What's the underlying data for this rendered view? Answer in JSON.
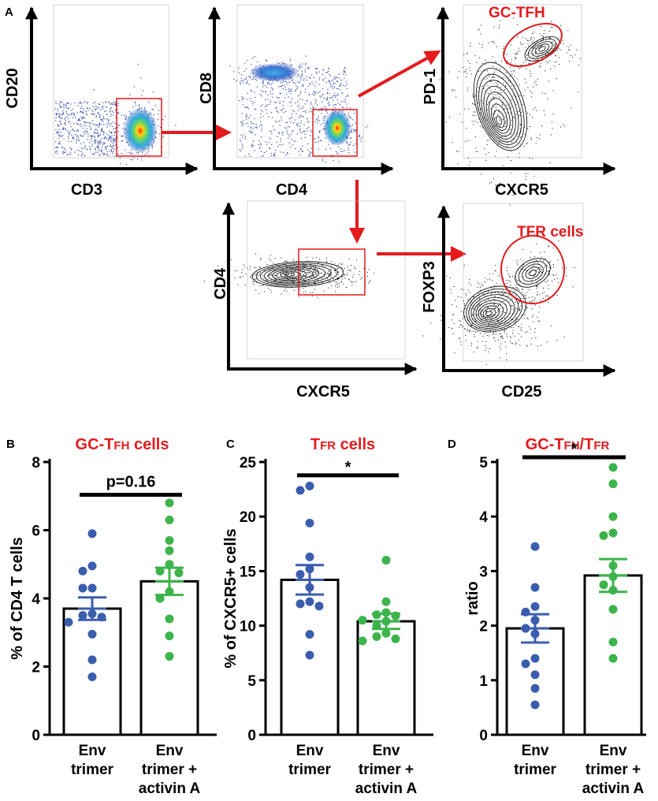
{
  "colors": {
    "red": "#e41a1c",
    "blue": "#3a5dad",
    "green": "#3cb44b",
    "black": "#000000"
  },
  "panel_a": {
    "letter": "A",
    "plots": [
      {
        "id": "p1",
        "xlabel": "CD3",
        "ylabel": "CD20",
        "style": "density",
        "gate": "rect",
        "gate_label": ""
      },
      {
        "id": "p2",
        "xlabel": "CD4",
        "ylabel": "CD8",
        "style": "density",
        "gate": "rect",
        "gate_label": ""
      },
      {
        "id": "p3",
        "xlabel": "CXCR5",
        "ylabel": "PD-1",
        "style": "contour",
        "gate": "ellipse",
        "gate_label": "GC-TFH"
      },
      {
        "id": "p4",
        "xlabel": "CXCR5",
        "ylabel": "CD4",
        "style": "contour",
        "gate": "rect",
        "gate_label": ""
      },
      {
        "id": "p5",
        "xlabel": "CD25",
        "ylabel": "FOXP3",
        "style": "contour",
        "gate": "ellipse",
        "gate_label": "TFR cells"
      }
    ]
  },
  "chart_data": [
    {
      "type": "bar",
      "panel": "B",
      "title": "GC-TFH cells",
      "title_main": "GC-T",
      "title_sub": "FH",
      "title_rest": " cells",
      "xlabel": "",
      "ylabel": "% of CD4  T cells",
      "ylim": [
        0,
        8
      ],
      "yticks": [
        "0",
        "2",
        "4",
        "6",
        "8"
      ],
      "categories": [
        {
          "line1": "Env",
          "line2": "trimer",
          "line3": ""
        },
        {
          "line1": "Env",
          "line2": "trimer +",
          "line3": "activin A"
        }
      ],
      "means": [
        3.7,
        4.5
      ],
      "sem": [
        0.33,
        0.4
      ],
      "points": [
        [
          5.9,
          4.95,
          4.8,
          4.3,
          4.3,
          3.55,
          3.5,
          3.45,
          3.3,
          2.95,
          2.2,
          1.7
        ],
        [
          6.8,
          6.3,
          5.7,
          5.4,
          5.0,
          4.8,
          4.75,
          4.2,
          4.0,
          3.4,
          2.9,
          2.3
        ]
      ],
      "significance": "p=0.16"
    },
    {
      "type": "bar",
      "panel": "C",
      "title": "TFR cells",
      "title_main": "T",
      "title_sub": "FR",
      "title_rest": " cells",
      "xlabel": "",
      "ylabel": "% of CXCR5+ cells",
      "ylim": [
        0,
        25
      ],
      "yticks": [
        "0",
        "5",
        "10",
        "15",
        "20",
        "25"
      ],
      "categories": [
        {
          "line1": "Env",
          "line2": "trimer",
          "line3": ""
        },
        {
          "line1": "Env",
          "line2": "trimer +",
          "line3": "activin A"
        }
      ],
      "means": [
        14.2,
        10.4
      ],
      "sem": [
        1.35,
        0.7
      ],
      "points": [
        [
          22.8,
          22.4,
          19.4,
          16.3,
          15.2,
          14.7,
          13.5,
          12.2,
          12.0,
          11.8,
          9.2,
          7.3
        ],
        [
          16.0,
          12.2,
          11.2,
          11.0,
          10.9,
          10.5,
          10.4,
          10.0,
          9.3,
          9.0,
          8.8,
          8.6
        ]
      ],
      "significance": "*"
    },
    {
      "type": "bar",
      "panel": "D",
      "title": "GC-TFH/TFR",
      "title_main": "GC-T",
      "title_sub": "FH",
      "title_rest": "/T",
      "title_sub2": "FR",
      "xlabel": "",
      "ylabel": "ratio",
      "ylim": [
        0,
        5
      ],
      "yticks": [
        "0",
        "1",
        "2",
        "3",
        "4",
        "5"
      ],
      "categories": [
        {
          "line1": "Env",
          "line2": "trimer",
          "line3": ""
        },
        {
          "line1": "Env",
          "line2": "trimer +",
          "line3": "activin A"
        }
      ],
      "means": [
        1.95,
        2.92
      ],
      "sem": [
        0.26,
        0.3
      ],
      "points": [
        [
          3.45,
          2.7,
          2.35,
          2.25,
          2.1,
          1.95,
          1.85,
          1.4,
          1.3,
          1.1,
          0.85,
          0.55
        ],
        [
          4.9,
          4.6,
          4.0,
          3.7,
          3.65,
          3.1,
          2.9,
          2.75,
          2.65,
          2.3,
          1.7,
          1.4
        ]
      ],
      "significance": "*"
    }
  ]
}
